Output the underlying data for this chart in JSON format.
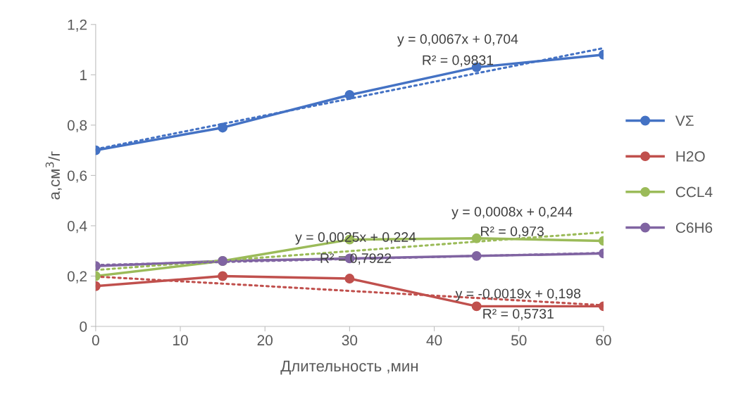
{
  "chart_data": {
    "type": "line",
    "xlabel": "Длительность ,мин",
    "ylabel": "a,см$^{3}$/г",
    "x": [
      0,
      15,
      30,
      45,
      60
    ],
    "series": [
      {
        "name": "VΣ",
        "color": "#4472c4",
        "values": [
          0.7,
          0.79,
          0.92,
          1.03,
          1.08
        ],
        "marker": "circle",
        "line_style": "solid"
      },
      {
        "name": "H2O",
        "color": "#c0504d",
        "values": [
          0.16,
          0.2,
          0.19,
          0.08,
          0.08
        ],
        "marker": "circle",
        "line_style": "solid"
      },
      {
        "name": "CCL4",
        "color": "#9bbb59",
        "values": [
          0.2,
          0.26,
          0.345,
          0.35,
          0.34
        ],
        "marker": "circle",
        "line_style": "solid"
      },
      {
        "name": "C6H6",
        "color": "#8064a2",
        "values": [
          0.24,
          0.26,
          0.27,
          0.28,
          0.29
        ],
        "marker": "circle",
        "line_style": "solid"
      },
      {
        "type": "line",
        "color": "#4472c4",
        "values": [
          0.704,
          0.805,
          0.905,
          1.006,
          1.106
        ],
        "marker": "none",
        "line_style": "dotted"
      },
      {
        "type": "line",
        "color": "#c0504d",
        "values": [
          0.198,
          0.17,
          0.141,
          0.113,
          0.084
        ],
        "marker": "none",
        "line_style": "dotted"
      },
      {
        "type": "line",
        "color": "#9bbb59",
        "values": [
          0.224,
          0.262,
          0.299,
          0.337,
          0.374
        ],
        "marker": "none",
        "line_style": "dotted"
      },
      {
        "type": "line",
        "color": "#8064a2",
        "values": [
          0.244,
          0.256,
          0.268,
          0.28,
          0.292
        ],
        "marker": "none",
        "line_style": "dotted"
      }
    ],
    "xlim": [
      0,
      60
    ],
    "xticks": [
      0,
      10,
      20,
      30,
      40,
      50,
      60
    ],
    "ylim": [
      0,
      1.2
    ],
    "yticks": [
      {
        "value": 0,
        "label": "0"
      },
      {
        "value": 0.2,
        "label": "0,2"
      },
      {
        "value": 0.4,
        "label": "0,4"
      },
      {
        "value": 0.6,
        "label": "0,6"
      },
      {
        "value": 0.8,
        "label": "0,8"
      },
      {
        "value": 1,
        "label": "1"
      },
      {
        "value": 1.2,
        "label": "1,2"
      }
    ],
    "grid": false,
    "legend": "right",
    "annotations": [
      "y = 0,0067x + 0,704",
      "R² = 0,9831",
      "y = 0,0008x + 0,244",
      "R² = 0,973",
      "y = 0,0025x + 0,224",
      "R² = 0,7922",
      "y = -0,0019x + 0,198",
      "R² = 0,5731"
    ]
  }
}
